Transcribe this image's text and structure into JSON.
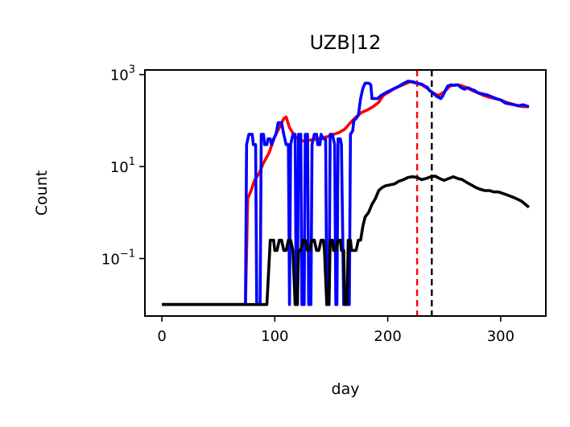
{
  "chart_data": {
    "type": "line",
    "title": "UZB|12",
    "xlabel": "day",
    "ylabel": "Count",
    "xlim": [
      -15,
      340
    ],
    "ylim_log10": [
      -2.25,
      3.1
    ],
    "yscale": "log",
    "x_ticks": [
      {
        "value": 0,
        "label": "0"
      },
      {
        "value": 100,
        "label": "100"
      },
      {
        "value": 200,
        "label": "200"
      },
      {
        "value": 300,
        "label": "300"
      }
    ],
    "y_ticks": [
      {
        "exp": 3,
        "base": "10",
        "sup": "3"
      },
      {
        "exp": 1,
        "base": "10",
        "sup": "1"
      },
      {
        "exp": -1,
        "base": "10",
        "sup": "−1"
      }
    ],
    "vlines": [
      {
        "x": 226,
        "color": "#ff0000"
      },
      {
        "x": 239,
        "color": "#000000"
      }
    ],
    "series": [
      {
        "color": "#ff0000",
        "points": [
          [
            0,
            0.01
          ],
          [
            74,
            0.01
          ],
          [
            76,
            2
          ],
          [
            79,
            3
          ],
          [
            82,
            5
          ],
          [
            86,
            7
          ],
          [
            90,
            12
          ],
          [
            95,
            20
          ],
          [
            100,
            45
          ],
          [
            104,
            70
          ],
          [
            108,
            110
          ],
          [
            110,
            120
          ],
          [
            113,
            70
          ],
          [
            118,
            45
          ],
          [
            122,
            38
          ],
          [
            127,
            35
          ],
          [
            132,
            38
          ],
          [
            137,
            40
          ],
          [
            142,
            42
          ],
          [
            147,
            45
          ],
          [
            152,
            50
          ],
          [
            157,
            55
          ],
          [
            162,
            65
          ],
          [
            167,
            90
          ],
          [
            172,
            120
          ],
          [
            177,
            150
          ],
          [
            182,
            170
          ],
          [
            187,
            200
          ],
          [
            192,
            250
          ],
          [
            196,
            350
          ],
          [
            200,
            400
          ],
          [
            205,
            480
          ],
          [
            210,
            550
          ],
          [
            215,
            620
          ],
          [
            220,
            700
          ],
          [
            225,
            650
          ],
          [
            230,
            600
          ],
          [
            235,
            500
          ],
          [
            240,
            400
          ],
          [
            245,
            350
          ],
          [
            250,
            420
          ],
          [
            255,
            560
          ],
          [
            260,
            600
          ],
          [
            265,
            580
          ],
          [
            270,
            520
          ],
          [
            275,
            450
          ],
          [
            280,
            400
          ],
          [
            285,
            350
          ],
          [
            290,
            320
          ],
          [
            295,
            300
          ],
          [
            300,
            280
          ],
          [
            305,
            250
          ],
          [
            310,
            230
          ],
          [
            315,
            210
          ],
          [
            320,
            200
          ],
          [
            325,
            200
          ]
        ]
      },
      {
        "color": "#0000ff",
        "points": [
          [
            0,
            0.01
          ],
          [
            74,
            0.01
          ],
          [
            75,
            30
          ],
          [
            77,
            50
          ],
          [
            80,
            50
          ],
          [
            81,
            30
          ],
          [
            83,
            30
          ],
          [
            84,
            0.01
          ],
          [
            87,
            0.01
          ],
          [
            88,
            50
          ],
          [
            90,
            50
          ],
          [
            91,
            30
          ],
          [
            93,
            30
          ],
          [
            94,
            40
          ],
          [
            96,
            40
          ],
          [
            97,
            30
          ],
          [
            99,
            40
          ],
          [
            101,
            50
          ],
          [
            103,
            90
          ],
          [
            106,
            90
          ],
          [
            108,
            50
          ],
          [
            110,
            30
          ],
          [
            112,
            30
          ],
          [
            113,
            0.01
          ],
          [
            114,
            30
          ],
          [
            116,
            50
          ],
          [
            118,
            50
          ],
          [
            119,
            0.01
          ],
          [
            120,
            0.01
          ],
          [
            121,
            50
          ],
          [
            123,
            50
          ],
          [
            124,
            0.01
          ],
          [
            126,
            0.01
          ],
          [
            127,
            50
          ],
          [
            129,
            50
          ],
          [
            130,
            0.01
          ],
          [
            132,
            0.01
          ],
          [
            133,
            30
          ],
          [
            135,
            50
          ],
          [
            137,
            50
          ],
          [
            138,
            30
          ],
          [
            140,
            30
          ],
          [
            141,
            50
          ],
          [
            143,
            40
          ],
          [
            145,
            40
          ],
          [
            146,
            0.01
          ],
          [
            148,
            0.01
          ],
          [
            149,
            50
          ],
          [
            151,
            50
          ],
          [
            153,
            30
          ],
          [
            154,
            0.01
          ],
          [
            155,
            0.01
          ],
          [
            156,
            40
          ],
          [
            158,
            40
          ],
          [
            159,
            30
          ],
          [
            161,
            0.01
          ],
          [
            166,
            0.01
          ],
          [
            167,
            50
          ],
          [
            169,
            60
          ],
          [
            170,
            100
          ],
          [
            172,
            110
          ],
          [
            174,
            130
          ],
          [
            176,
            300
          ],
          [
            178,
            500
          ],
          [
            180,
            650
          ],
          [
            183,
            650
          ],
          [
            185,
            600
          ],
          [
            186,
            300
          ],
          [
            189,
            300
          ],
          [
            191,
            300
          ],
          [
            194,
            350
          ],
          [
            198,
            400
          ],
          [
            202,
            450
          ],
          [
            206,
            500
          ],
          [
            210,
            560
          ],
          [
            214,
            640
          ],
          [
            218,
            720
          ],
          [
            222,
            700
          ],
          [
            226,
            650
          ],
          [
            230,
            620
          ],
          [
            233,
            560
          ],
          [
            235,
            530
          ],
          [
            237,
            450
          ],
          [
            240,
            400
          ],
          [
            243,
            340
          ],
          [
            245,
            320
          ],
          [
            247,
            300
          ],
          [
            249,
            350
          ],
          [
            251,
            450
          ],
          [
            253,
            560
          ],
          [
            256,
            600
          ],
          [
            259,
            580
          ],
          [
            262,
            600
          ],
          [
            265,
            520
          ],
          [
            268,
            480
          ],
          [
            271,
            520
          ],
          [
            274,
            480
          ],
          [
            277,
            450
          ],
          [
            280,
            400
          ],
          [
            284,
            380
          ],
          [
            288,
            360
          ],
          [
            292,
            330
          ],
          [
            296,
            300
          ],
          [
            300,
            280
          ],
          [
            304,
            240
          ],
          [
            308,
            230
          ],
          [
            312,
            220
          ],
          [
            316,
            210
          ],
          [
            320,
            220
          ],
          [
            325,
            200
          ]
        ]
      },
      {
        "color": "#000000",
        "points": [
          [
            0,
            0.01
          ],
          [
            93,
            0.01
          ],
          [
            96,
            0.25
          ],
          [
            99,
            0.25
          ],
          [
            100,
            0.15
          ],
          [
            102,
            0.15
          ],
          [
            104,
            0.25
          ],
          [
            106,
            0.25
          ],
          [
            108,
            0.15
          ],
          [
            110,
            0.15
          ],
          [
            112,
            0.25
          ],
          [
            114,
            0.25
          ],
          [
            116,
            0.15
          ],
          [
            118,
            0.01
          ],
          [
            120,
            0.01
          ],
          [
            121,
            0.15
          ],
          [
            123,
            0.15
          ],
          [
            125,
            0.25
          ],
          [
            127,
            0.25
          ],
          [
            129,
            0.15
          ],
          [
            131,
            0.15
          ],
          [
            133,
            0.25
          ],
          [
            135,
            0.25
          ],
          [
            137,
            0.15
          ],
          [
            139,
            0.15
          ],
          [
            141,
            0.25
          ],
          [
            143,
            0.25
          ],
          [
            144,
            0.15
          ],
          [
            146,
            0.01
          ],
          [
            148,
            0.01
          ],
          [
            149,
            0.25
          ],
          [
            151,
            0.25
          ],
          [
            152,
            0.15
          ],
          [
            154,
            0.15
          ],
          [
            156,
            0.25
          ],
          [
            158,
            0.25
          ],
          [
            159,
            0.15
          ],
          [
            161,
            0.15
          ],
          [
            162,
            0.01
          ],
          [
            164,
            0.01
          ],
          [
            165,
            0.25
          ],
          [
            167,
            0.25
          ],
          [
            168,
            0.15
          ],
          [
            170,
            0.15
          ],
          [
            172,
            0.15
          ],
          [
            174,
            0.25
          ],
          [
            176,
            0.25
          ],
          [
            178,
            0.5
          ],
          [
            180,
            0.8
          ],
          [
            183,
            1
          ],
          [
            186,
            1.5
          ],
          [
            189,
            2
          ],
          [
            192,
            3
          ],
          [
            195,
            3.5
          ],
          [
            198,
            3.8
          ],
          [
            202,
            4
          ],
          [
            206,
            4.2
          ],
          [
            210,
            4.8
          ],
          [
            214,
            5.2
          ],
          [
            218,
            5.8
          ],
          [
            222,
            6
          ],
          [
            226,
            5.8
          ],
          [
            230,
            5.2
          ],
          [
            234,
            5.5
          ],
          [
            238,
            6
          ],
          [
            242,
            6.2
          ],
          [
            246,
            5.5
          ],
          [
            250,
            5
          ],
          [
            254,
            5.5
          ],
          [
            258,
            6
          ],
          [
            262,
            5.5
          ],
          [
            266,
            5.2
          ],
          [
            270,
            4.5
          ],
          [
            274,
            4
          ],
          [
            278,
            3.5
          ],
          [
            282,
            3.2
          ],
          [
            286,
            3
          ],
          [
            290,
            3
          ],
          [
            294,
            2.8
          ],
          [
            298,
            2.8
          ],
          [
            302,
            2.6
          ],
          [
            306,
            2.4
          ],
          [
            310,
            2.2
          ],
          [
            314,
            2
          ],
          [
            318,
            1.8
          ],
          [
            322,
            1.5
          ],
          [
            325,
            1.3
          ]
        ]
      }
    ]
  }
}
